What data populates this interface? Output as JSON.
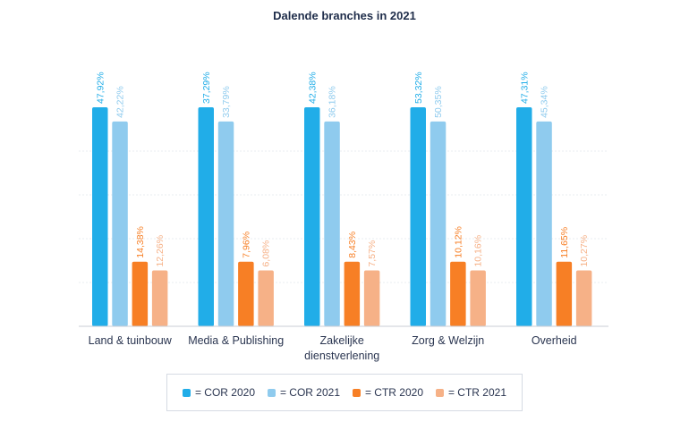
{
  "chart_data": {
    "type": "bar",
    "title": "Dalende branches in 2021",
    "categories": [
      "Land & tuinbouw",
      "Media & Publishing",
      "Zakelijke dienstverlening",
      "Zorg & Welzijn",
      "Overheid"
    ],
    "category_lines": [
      [
        "Land & tuinbouw"
      ],
      [
        "Media & Publishing"
      ],
      [
        "Zakelijke",
        "dienstverlening"
      ],
      [
        "Zorg & Welzijn"
      ],
      [
        "Overheid"
      ]
    ],
    "series": [
      {
        "name": "COR 2020",
        "legend_label": "= COR 2020",
        "color": "#21ade8",
        "values": [
          47.92,
          37.29,
          42.38,
          53.32,
          47.31
        ],
        "labels": [
          "47,92%",
          "37,29%",
          "42,38%",
          "53,32%",
          "47,31%"
        ],
        "bar_level": 100
      },
      {
        "name": "COR 2021",
        "legend_label": "= COR 2021",
        "color": "#8fcbee",
        "values": [
          42.22,
          33.79,
          36.18,
          50.35,
          45.34
        ],
        "labels": [
          "42,22%",
          "33,79%",
          "36,18%",
          "50,35%",
          "45,34%"
        ],
        "bar_level": 93.5
      },
      {
        "name": "CTR 2020",
        "legend_label": "= CTR 2020",
        "color": "#f77f25",
        "values": [
          14.38,
          7.96,
          8.43,
          10.12,
          11.65
        ],
        "labels": [
          "14,38%",
          "7,96%",
          "8,43%",
          "10,12%",
          "11,65%"
        ],
        "bar_level": 29.5
      },
      {
        "name": "CTR 2021",
        "legend_label": "= CTR 2021",
        "color": "#f6b187",
        "values": [
          12.26,
          6.08,
          7.57,
          10.16,
          10.27
        ],
        "labels": [
          "12,26%",
          "6,08%",
          "7,57%",
          "10,16%",
          "10,27%"
        ],
        "bar_level": 25.5
      }
    ],
    "xlabel": "",
    "ylabel": "",
    "ylim": [
      0,
      100
    ],
    "grid": true,
    "legend_position": "bottom"
  }
}
